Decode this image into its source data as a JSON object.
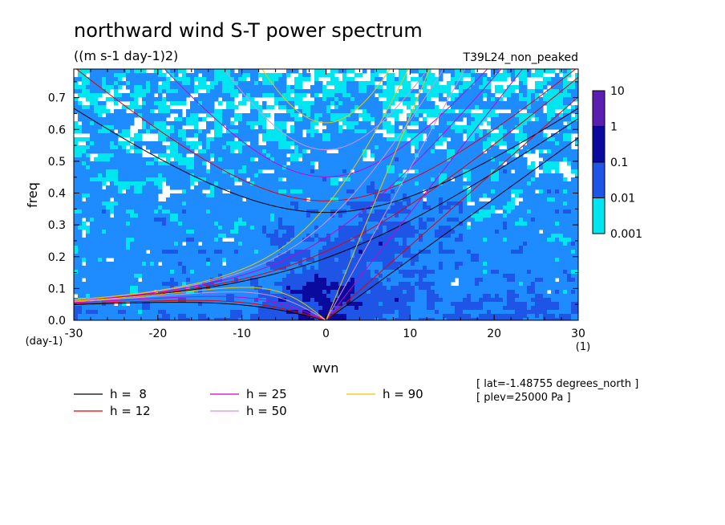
{
  "chart_data": {
    "type": "heatmap",
    "title": "northward wind S-T power spectrum",
    "subtitle": "((m s-1 day-1)2)",
    "run_label": "T39L24_non_peaked",
    "xlabel": "wvn",
    "ylabel": "freq",
    "x_unit_label": "(1)",
    "y_unit_label": "(day-1)",
    "xlim": [
      -30,
      30
    ],
    "ylim": [
      0,
      0.79
    ],
    "x_ticks": [
      -30,
      -20,
      -10,
      0,
      10,
      20,
      30
    ],
    "x_tick_labels": [
      "-30",
      "-20",
      "-10",
      "0",
      "10",
      "20",
      "30"
    ],
    "y_ticks": [
      0,
      0.1,
      0.2,
      0.3,
      0.4,
      0.5,
      0.6,
      0.7
    ],
    "y_tick_labels": [
      "0.0",
      "0.1",
      "0.2",
      "0.3",
      "0.4",
      "0.5",
      "0.6",
      "0.7"
    ],
    "colorbar": {
      "levels": [
        "10",
        "1",
        "0.1",
        "0.01",
        "0.001"
      ],
      "colors": [
        "#5a1fb0",
        "#0a0a9e",
        "#1f55e6",
        "#1e8cff",
        "#00e6f0"
      ]
    },
    "series": [
      {
        "name": "h =  8",
        "color": "#000000",
        "h": 8
      },
      {
        "name": "h = 12",
        "color": "#e60000",
        "h": 12
      },
      {
        "name": "h = 25",
        "color": "#cc00cc",
        "h": 25
      },
      {
        "name": "h = 50",
        "color": "#d890e0",
        "h": 50
      },
      {
        "name": "h = 90",
        "color": "#e6c800",
        "h": 90
      }
    ],
    "annotations": [
      "[ lat=-1.48755 degrees_north ]",
      "[ plev=25000 Pa ]"
    ]
  }
}
